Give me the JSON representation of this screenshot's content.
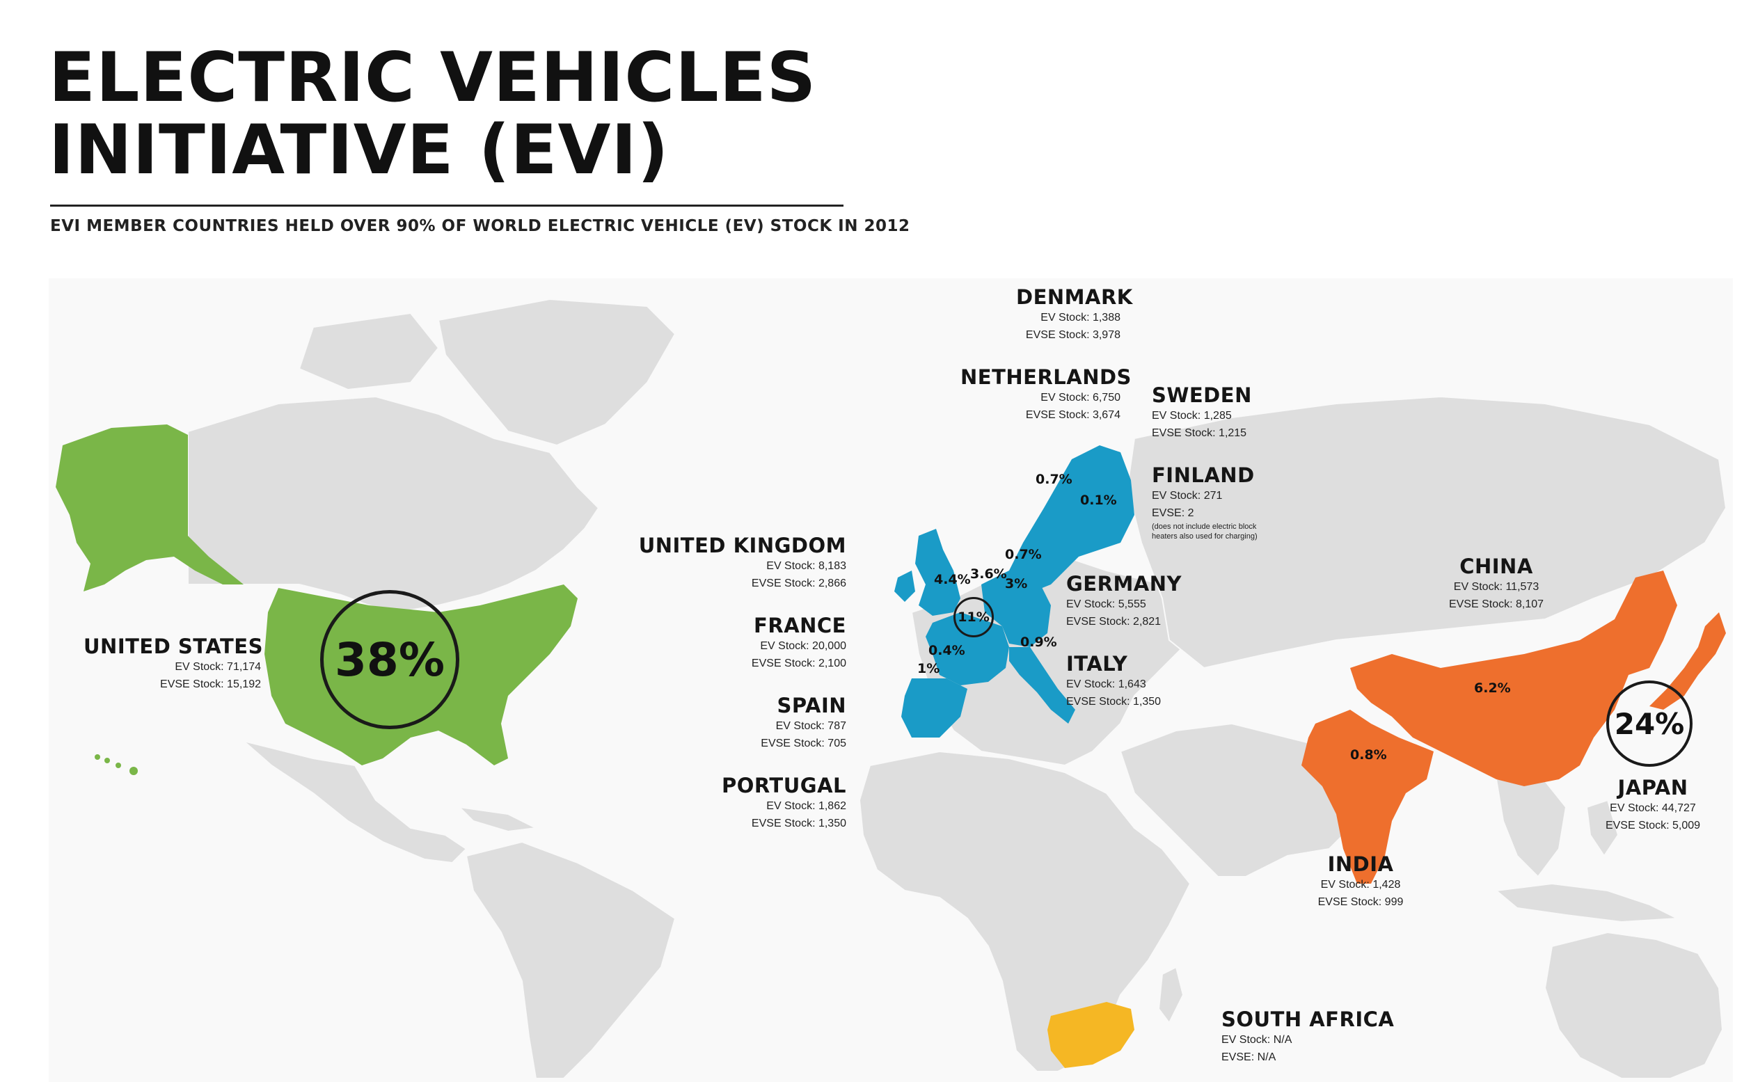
{
  "title": {
    "line1": "ELECTRIC VEHICLES",
    "line2": "INITIATIVE (EVI)"
  },
  "subtitle": "EVI MEMBER COUNTRIES HELD OVER 90% OF WORLD ELECTRIC VEHICLE (EV) STOCK IN 2012",
  "colors": {
    "land": "#dedede",
    "united_states": "#7ab648",
    "europe": "#1a9bc7",
    "asia": "#ee6f2d",
    "south_africa": "#f5b724"
  },
  "countries": {
    "denmark": {
      "name": "DENMARK",
      "ev": "EV Stock: 1,388",
      "evse": "EVSE Stock: 3,978"
    },
    "netherlands": {
      "name": "NETHERLANDS",
      "ev": "EV Stock: 6,750",
      "evse": "EVSE Stock: 3,674"
    },
    "sweden": {
      "name": "SWEDEN",
      "ev": "EV Stock: 1,285",
      "evse": "EVSE Stock: 1,215"
    },
    "finland": {
      "name": "FINLAND",
      "ev": "EV Stock: 271",
      "evse": "EVSE: 2",
      "note1": "(does not include electric block",
      "note2": "heaters also used for charging)"
    },
    "united_kingdom": {
      "name": "UNITED KINGDOM",
      "ev": "EV Stock: 8,183",
      "evse": "EVSE Stock: 2,866"
    },
    "germany": {
      "name": "GERMANY",
      "ev": "EV Stock: 5,555",
      "evse": "EVSE Stock: 2,821"
    },
    "france": {
      "name": "FRANCE",
      "ev": "EV Stock: 20,000",
      "evse": "EVSE Stock: 2,100"
    },
    "italy": {
      "name": "ITALY",
      "ev": "EV Stock: 1,643",
      "evse": "EVSE Stock: 1,350"
    },
    "spain": {
      "name": "SPAIN",
      "ev": "EV Stock: 787",
      "evse": "EVSE Stock: 705"
    },
    "portugal": {
      "name": "PORTUGAL",
      "ev": "EV Stock: 1,862",
      "evse": "EVSE Stock: 1,350"
    },
    "united_states": {
      "name": "UNITED STATES",
      "ev": "EV Stock: 71,174",
      "evse": "EVSE Stock: 15,192"
    },
    "china": {
      "name": "CHINA",
      "ev": "EV Stock: 11,573",
      "evse": "EVSE Stock: 8,107"
    },
    "japan": {
      "name": "JAPAN",
      "ev": "EV Stock: 44,727",
      "evse": "EVSE Stock: 5,009"
    },
    "india": {
      "name": "INDIA",
      "ev": "EV Stock: 1,428",
      "evse": "EVSE Stock: 999"
    },
    "south_africa": {
      "name": "SOUTH AFRICA",
      "ev": "EV Stock: N/A",
      "evse": "EVSE: N/A"
    }
  },
  "shares": {
    "united_states": "38%",
    "japan": "24%",
    "france": "11%",
    "china": "6.2%",
    "india": "0.8%",
    "united_kingdom": "4.4%",
    "netherlands": "3.6%",
    "germany": "3%",
    "italy": "0.9%",
    "spain": "0.4%",
    "portugal": "1%",
    "denmark": "0.7%",
    "sweden": "0.7%",
    "finland": "0.1%"
  }
}
